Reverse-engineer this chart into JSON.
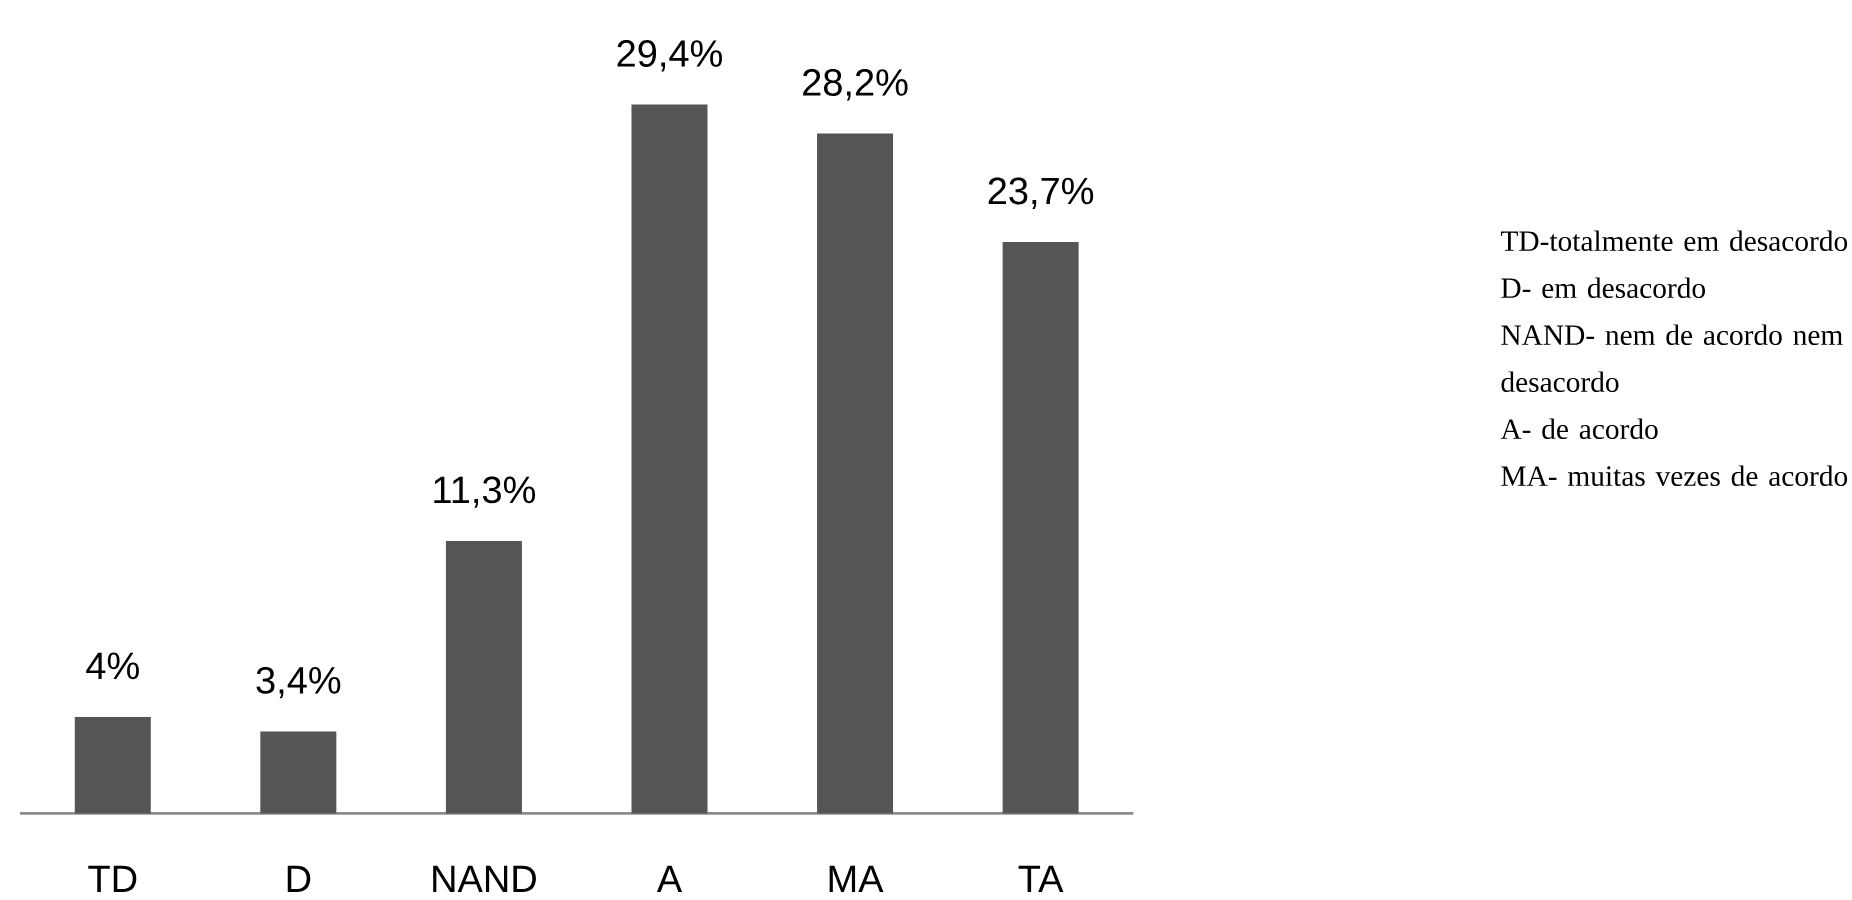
{
  "chart_data": {
    "type": "bar",
    "categories": [
      "TD",
      "D",
      "NAND",
      "A",
      "MA",
      "TA"
    ],
    "values": [
      4,
      3.4,
      11.3,
      29.4,
      28.2,
      23.7
    ],
    "value_labels": [
      "4%",
      "3,4%",
      "11,3%",
      "29,4%",
      "28,2%",
      "23,7%"
    ],
    "color": "#555555",
    "annotations": [
      "TD-totalmente em desacordo",
      "D- em desacordo",
      "NAND- nem de acordo nem desacordo",
      "A- de acordo",
      "MA- muitas vezes de acordo"
    ]
  }
}
